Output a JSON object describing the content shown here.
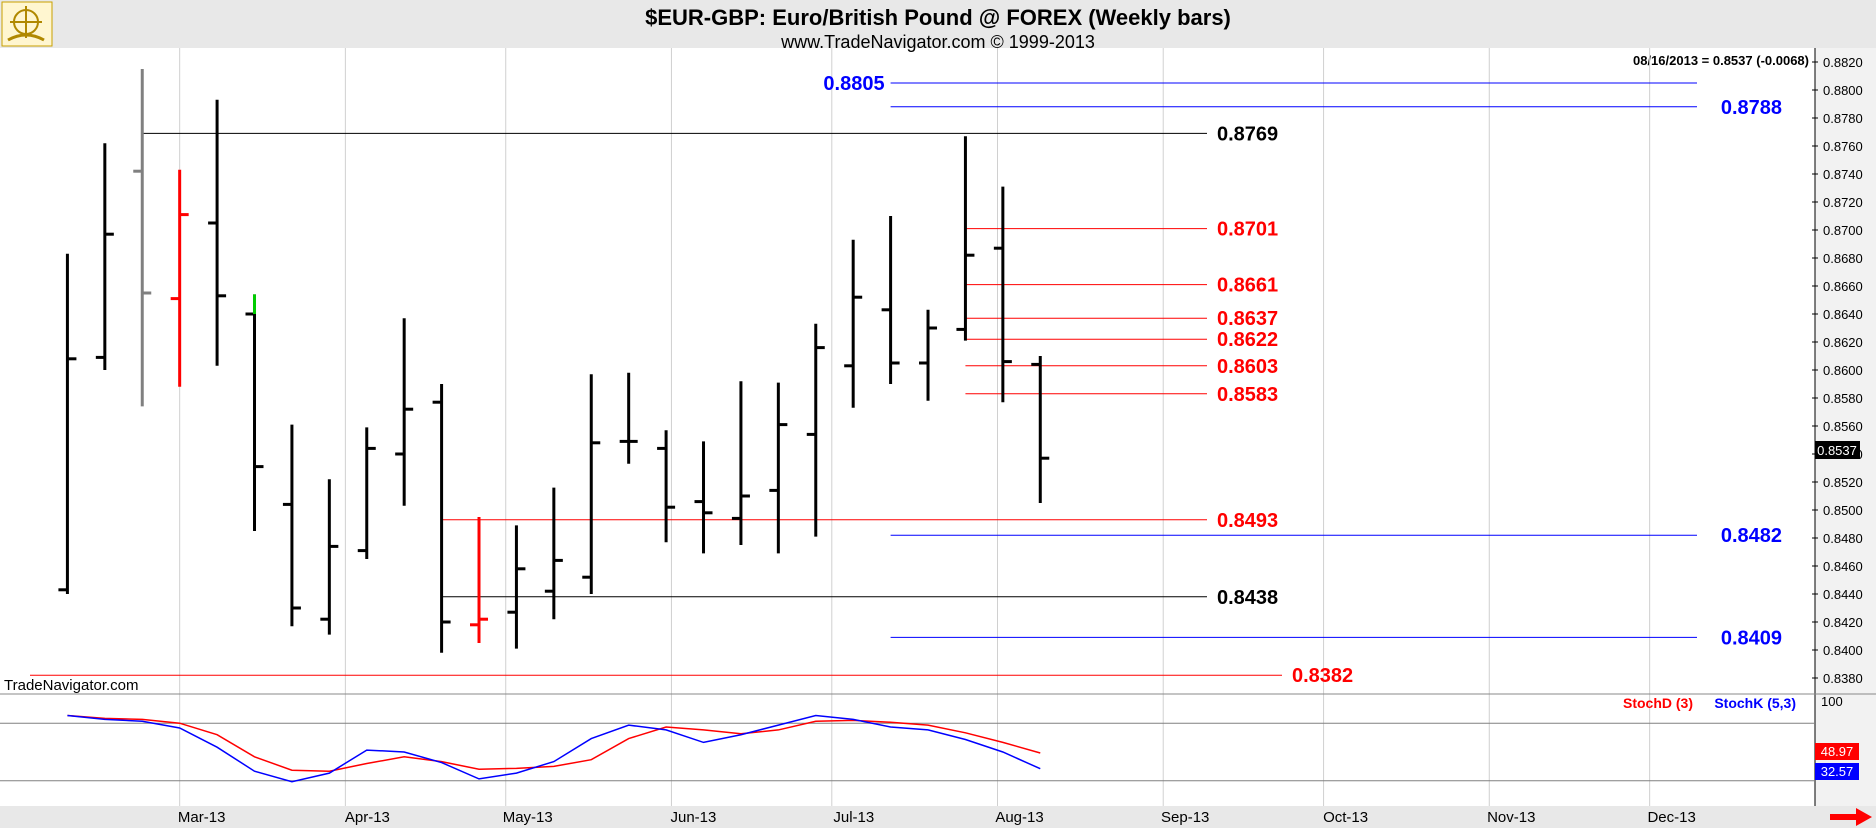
{
  "header": {
    "title": "$EUR-GBP:  Euro/British Pound @ FOREX  (Weekly bars)",
    "subtitle": "www.TradeNavigator.com © 1999-2013"
  },
  "watermark": "TradeNavigator.com",
  "last_quote": "08/16/2013 = 0.8537 (-0.0068)",
  "last_price_tag": "0.8537",
  "colors": {
    "background": "#ffffff",
    "header_bg": "#e8e8e8",
    "bar_default": "#000000",
    "bar_gray": "#808080",
    "bar_red": "#ff0000",
    "bar_green": "#00cc00",
    "level_black": "#000000",
    "level_red": "#ff0000",
    "level_blue": "#0000ff",
    "stoch_d": "#ff0000",
    "stoch_k": "#0000ff",
    "nav_arrow": "#ff0000"
  },
  "chart_data": {
    "type": "ohlc",
    "price_axis": {
      "min": 0.837,
      "max": 0.883,
      "ticks": [
        "0.8820",
        "0.8800",
        "0.8780",
        "0.8760",
        "0.8740",
        "0.8720",
        "0.8700",
        "0.8680",
        "0.8660",
        "0.8640",
        "0.8620",
        "0.8600",
        "0.8580",
        "0.8560",
        "0.8540",
        "0.8520",
        "0.8500",
        "0.8480",
        "0.8460",
        "0.8440",
        "0.8420",
        "0.8400",
        "0.8380"
      ]
    },
    "x_axis": {
      "labels": [
        "Mar-13",
        "Apr-13",
        "May-13",
        "Jun-13",
        "Jul-13",
        "Aug-13",
        "Sep-13",
        "Oct-13",
        "Nov-13",
        "Dec-13"
      ]
    },
    "bars": [
      {
        "date": "2013-02-08",
        "open": 0.8443,
        "high": 0.8683,
        "low": 0.844,
        "close": 0.8608,
        "color": "black"
      },
      {
        "date": "2013-02-15",
        "open": 0.8609,
        "high": 0.8762,
        "low": 0.86,
        "close": 0.8697,
        "color": "black"
      },
      {
        "date": "2013-02-22",
        "open": 0.8742,
        "high": 0.8815,
        "low": 0.8574,
        "close": 0.8655,
        "color": "gray"
      },
      {
        "date": "2013-03-01",
        "open": 0.8651,
        "high": 0.8743,
        "low": 0.8588,
        "close": 0.8711,
        "color": "red"
      },
      {
        "date": "2013-03-08",
        "open": 0.8705,
        "high": 0.8793,
        "low": 0.8603,
        "close": 0.8653,
        "color": "black"
      },
      {
        "date": "2013-03-15",
        "open": 0.864,
        "high": 0.8654,
        "low": 0.8485,
        "close": 0.8531,
        "color": "black",
        "accent": "green"
      },
      {
        "date": "2013-03-22",
        "open": 0.8504,
        "high": 0.8561,
        "low": 0.8417,
        "close": 0.843,
        "color": "black"
      },
      {
        "date": "2013-03-29",
        "open": 0.8422,
        "high": 0.8522,
        "low": 0.8411,
        "close": 0.8474,
        "color": "black"
      },
      {
        "date": "2013-04-05",
        "open": 0.8471,
        "high": 0.8559,
        "low": 0.8465,
        "close": 0.8544,
        "color": "black"
      },
      {
        "date": "2013-04-12",
        "open": 0.854,
        "high": 0.8637,
        "low": 0.8503,
        "close": 0.8572,
        "color": "black"
      },
      {
        "date": "2013-04-19",
        "open": 0.8577,
        "high": 0.859,
        "low": 0.8398,
        "close": 0.842,
        "color": "black"
      },
      {
        "date": "2013-04-26",
        "open": 0.8418,
        "high": 0.8495,
        "low": 0.8405,
        "close": 0.8422,
        "color": "red"
      },
      {
        "date": "2013-05-03",
        "open": 0.8427,
        "high": 0.8489,
        "low": 0.8401,
        "close": 0.8458,
        "color": "black"
      },
      {
        "date": "2013-05-10",
        "open": 0.8442,
        "high": 0.8516,
        "low": 0.8422,
        "close": 0.8464,
        "color": "black"
      },
      {
        "date": "2013-05-17",
        "open": 0.8452,
        "high": 0.8597,
        "low": 0.844,
        "close": 0.8548,
        "color": "black"
      },
      {
        "date": "2013-05-24",
        "open": 0.8549,
        "high": 0.8598,
        "low": 0.8533,
        "close": 0.8549,
        "color": "black"
      },
      {
        "date": "2013-05-31",
        "open": 0.8544,
        "high": 0.8557,
        "low": 0.8477,
        "close": 0.8502,
        "color": "black"
      },
      {
        "date": "2013-06-07",
        "open": 0.8506,
        "high": 0.8549,
        "low": 0.8469,
        "close": 0.8498,
        "color": "black"
      },
      {
        "date": "2013-06-14",
        "open": 0.8494,
        "high": 0.8592,
        "low": 0.8475,
        "close": 0.851,
        "color": "black"
      },
      {
        "date": "2013-06-21",
        "open": 0.8514,
        "high": 0.8591,
        "low": 0.8469,
        "close": 0.8561,
        "color": "black"
      },
      {
        "date": "2013-06-28",
        "open": 0.8554,
        "high": 0.8633,
        "low": 0.8481,
        "close": 0.8616,
        "color": "black"
      },
      {
        "date": "2013-07-05",
        "open": 0.8603,
        "high": 0.8693,
        "low": 0.8573,
        "close": 0.8652,
        "color": "black"
      },
      {
        "date": "2013-07-12",
        "open": 0.8643,
        "high": 0.871,
        "low": 0.859,
        "close": 0.8605,
        "color": "black"
      },
      {
        "date": "2013-07-19",
        "open": 0.8605,
        "high": 0.8643,
        "low": 0.8578,
        "close": 0.863,
        "color": "black"
      },
      {
        "date": "2013-07-26",
        "open": 0.8629,
        "high": 0.8767,
        "low": 0.8621,
        "close": 0.8682,
        "color": "black"
      },
      {
        "date": "2013-08-02",
        "open": 0.8687,
        "high": 0.8731,
        "low": 0.8577,
        "close": 0.8606,
        "color": "black"
      },
      {
        "date": "2013-08-09",
        "open": 0.8604,
        "high": 0.861,
        "low": 0.8505,
        "close": 0.8537,
        "color": "black"
      }
    ],
    "levels": [
      {
        "label": "0.8805",
        "value": 0.8805,
        "color": "blue",
        "start": "2013-07-12",
        "label_side": "left"
      },
      {
        "label": "0.8788",
        "value": 0.8788,
        "color": "blue",
        "start": "2013-07-12",
        "label_side": "right"
      },
      {
        "label": "0.8769",
        "value": 0.8769,
        "color": "black",
        "start": "2013-02-22",
        "label_side": "end"
      },
      {
        "label": "0.8701",
        "value": 0.8701,
        "color": "red",
        "start": "2013-07-26",
        "label_side": "end"
      },
      {
        "label": "0.8661",
        "value": 0.8661,
        "color": "red",
        "start": "2013-07-26",
        "label_side": "end"
      },
      {
        "label": "0.8637",
        "value": 0.8637,
        "color": "red",
        "start": "2013-07-26",
        "label_side": "end"
      },
      {
        "label": "0.8622",
        "value": 0.8622,
        "color": "red",
        "start": "2013-07-26",
        "label_side": "end"
      },
      {
        "label": "0.8603",
        "value": 0.8603,
        "color": "red",
        "start": "2013-07-26",
        "label_side": "end"
      },
      {
        "label": "0.8583",
        "value": 0.8583,
        "color": "red",
        "start": "2013-07-26",
        "label_side": "end"
      },
      {
        "label": "0.8493",
        "value": 0.8493,
        "color": "red",
        "start": "2013-04-19",
        "label_side": "end"
      },
      {
        "label": "0.8482",
        "value": 0.8482,
        "color": "blue",
        "start": "2013-07-12",
        "label_side": "right"
      },
      {
        "label": "0.8438",
        "value": 0.8438,
        "color": "black",
        "start": "2013-04-19",
        "label_side": "end"
      },
      {
        "label": "0.8409",
        "value": 0.8409,
        "color": "blue",
        "start": "2013-07-12",
        "label_side": "right"
      },
      {
        "label": "0.8382",
        "value": 0.8382,
        "color": "red",
        "start": "2013-02-01",
        "label_side": "end"
      }
    ],
    "stochastic": {
      "labels": {
        "d": "StochD (3)",
        "k": "StochK (5,3)",
        "upper": "100"
      },
      "last_d": "48.97",
      "last_k": "32.57",
      "ylim": [
        0,
        100
      ],
      "bands": [
        80,
        20
      ],
      "series": [
        {
          "name": "StochD (3)",
          "color": "red",
          "values": [
            88,
            85,
            84,
            80,
            68,
            45,
            31,
            30,
            38,
            45,
            40,
            32,
            33,
            35,
            42,
            64,
            76,
            73,
            69,
            73,
            82,
            83,
            81,
            78,
            70,
            60,
            48.97
          ]
        },
        {
          "name": "StochK (5,3)",
          "color": "blue",
          "values": [
            88,
            84,
            82,
            75,
            55,
            30,
            19,
            28,
            52,
            50,
            39,
            22,
            28,
            40,
            64,
            78,
            73,
            60,
            68,
            78,
            88,
            84,
            76,
            73,
            63,
            50,
            32.57
          ]
        }
      ]
    }
  }
}
